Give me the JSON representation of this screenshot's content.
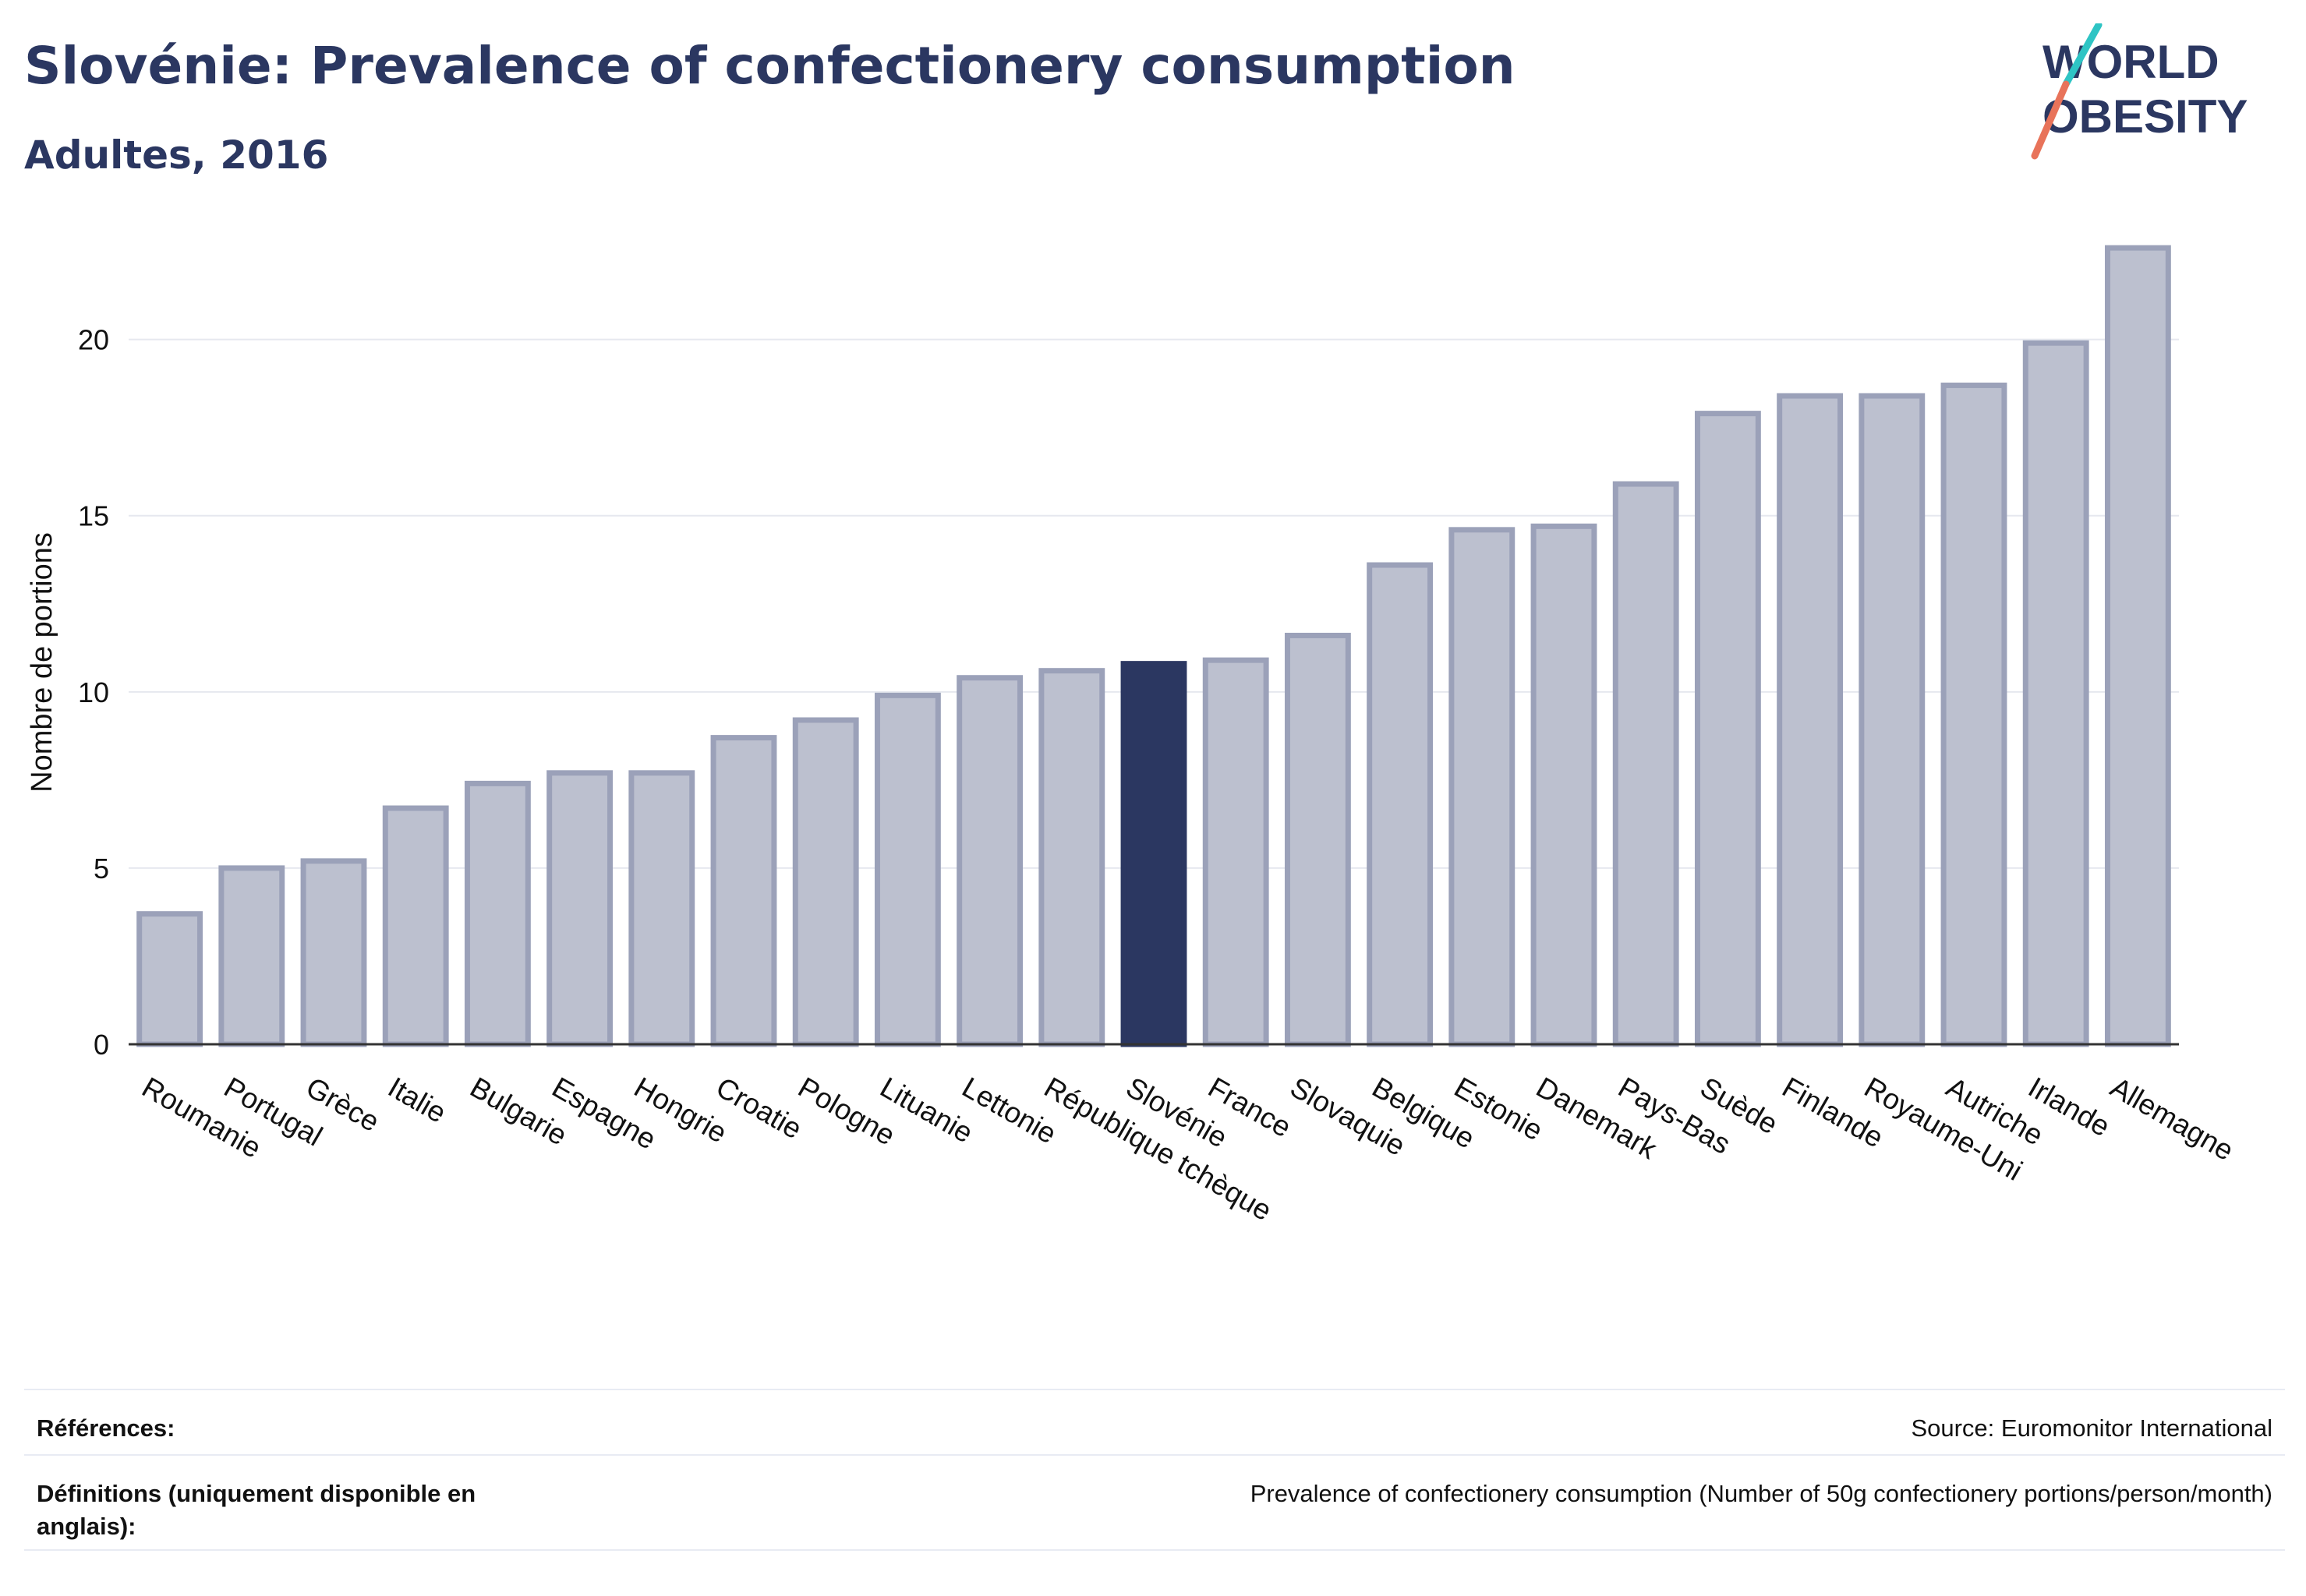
{
  "title": "Slovénie: Prevalence of confectionery consumption",
  "subtitle": "Adultes, 2016",
  "logo": {
    "line1": "WORLD",
    "line2": "OBESITY",
    "accent_colors": [
      "#2ec4c4",
      "#e8735a"
    ]
  },
  "colors": {
    "bar": "#bcc0cf",
    "bar_border": "#9ba1b9",
    "highlight": "#2b3761",
    "grid": "#e6e8ef"
  },
  "chart_data": {
    "type": "bar",
    "ylabel": "Nombre de portions",
    "xlabel": "",
    "ylim": [
      0,
      23
    ],
    "yticks": [
      0,
      5,
      10,
      15,
      20
    ],
    "grid": "horizontal",
    "highlight": "Slovénie",
    "categories": [
      "Roumanie",
      "Portugal",
      "Grèce",
      "Italie",
      "Bulgarie",
      "Espagne",
      "Hongrie",
      "Croatie",
      "Pologne",
      "Lituanie",
      "Lettonie",
      "République tchèque",
      "Slovénie",
      "France",
      "Slovaquie",
      "Belgique",
      "Estonie",
      "Danemark",
      "Pays-Bas",
      "Suède",
      "Finlande",
      "Royaume-Uni",
      "Autriche",
      "Irlande",
      "Allemagne"
    ],
    "values": [
      3.7,
      5.0,
      5.2,
      6.7,
      7.4,
      7.7,
      7.7,
      8.7,
      9.2,
      9.9,
      10.4,
      10.6,
      10.8,
      10.9,
      11.6,
      13.6,
      14.6,
      14.7,
      15.9,
      17.9,
      18.4,
      18.4,
      18.7,
      19.9,
      22.6
    ]
  },
  "footer": {
    "references_label": "Références:",
    "references_value": "Source: Euromonitor International",
    "definitions_label": "Définitions (uniquement disponible en anglais):",
    "definitions_value": "Prevalence of confectionery consumption (Number of 50g confectionery portions/person/month)"
  }
}
